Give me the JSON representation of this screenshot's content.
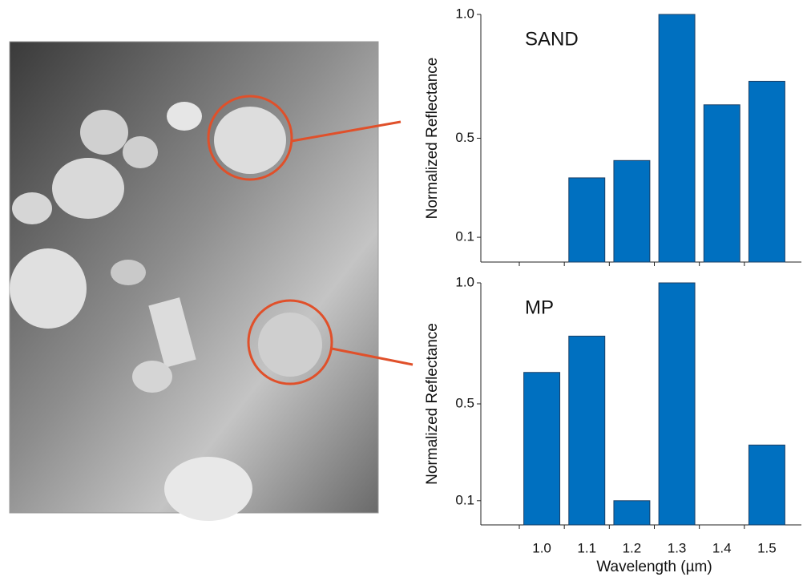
{
  "chart_data": [
    {
      "type": "bar",
      "title": "SAND",
      "ylabel": "Normalized Reflectance",
      "categories": [
        null,
        null,
        null,
        null,
        null,
        null
      ],
      "values": [
        0,
        0.34,
        0.41,
        1.0,
        0.635,
        0.73
      ],
      "color": "#0070c0",
      "ylim": [
        0,
        1.0
      ],
      "yticks": [
        0.1,
        0.5,
        {
          "value": 1.0,
          "label": "1.0"
        }
      ]
    },
    {
      "type": "bar",
      "title": "MP",
      "ylabel": "Normalized Reflectance",
      "xlabel": "Wavelength (µm)",
      "categories": [
        "1.0",
        "1.1",
        "1.2",
        "1.3",
        "1.4",
        "1.5"
      ],
      "values": [
        0.63,
        0.78,
        0.1,
        1.0,
        0,
        0.33
      ],
      "color": "#0070c0",
      "ylim": [
        0,
        1.0
      ],
      "yticks": [
        0.1,
        0.5,
        {
          "value": 1.0,
          "label": "1.0"
        }
      ]
    }
  ]
}
